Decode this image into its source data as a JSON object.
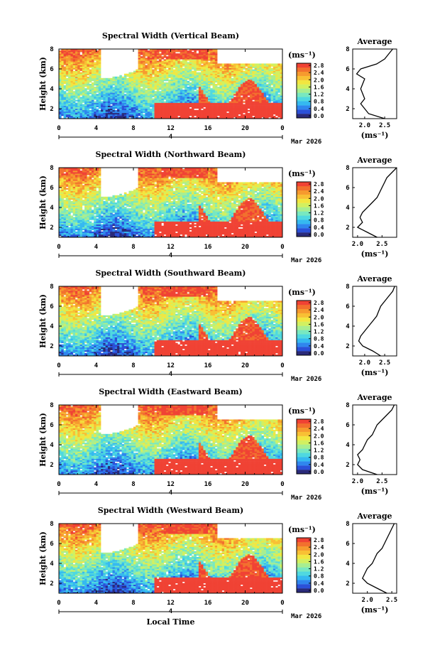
{
  "chart_data": [
    {
      "type": "heatmap",
      "title": "Spectral Width (Vertical Beam)",
      "xlabel": "",
      "ylabel": "Height (km)",
      "x_ticks": [
        "0",
        "4",
        "8",
        "12",
        "16",
        "20",
        "0"
      ],
      "y_ticks": [
        "2",
        "4",
        "6",
        "8"
      ],
      "date_label": "4",
      "month_label": "Mar 2026",
      "xlim": [
        0,
        24
      ],
      "ylim": [
        1,
        8
      ],
      "colorbar": {
        "unit": "(ms⁻¹)",
        "ticks": [
          "2.8",
          "2.4",
          "2.0",
          "1.6",
          "1.2",
          "0.8",
          "0.4",
          "0.0"
        ],
        "range": [
          0,
          2.8
        ]
      },
      "profile": {
        "title": "Average",
        "xlabel": "(ms⁻¹)",
        "x_ticks": [
          "2.0",
          "2.5"
        ],
        "y_ticks": [
          "2",
          "4",
          "6",
          "8"
        ],
        "xlim": [
          1.7,
          2.8
        ],
        "ylim": [
          1,
          8
        ],
        "heights": [
          1,
          1.5,
          2,
          2.5,
          3,
          3.5,
          4,
          4.5,
          5,
          5.5,
          6,
          6.5,
          7,
          7.5,
          8
        ],
        "values": [
          2.5,
          2.1,
          2.0,
          1.9,
          2.0,
          1.95,
          1.9,
          1.95,
          2.0,
          1.8,
          1.9,
          2.3,
          2.5,
          2.6,
          2.7
        ]
      }
    },
    {
      "type": "heatmap",
      "title": "Spectral Width (Northward Beam)",
      "xlabel": "",
      "ylabel": "Height (km)",
      "x_ticks": [
        "0",
        "4",
        "8",
        "12",
        "16",
        "20",
        "0"
      ],
      "y_ticks": [
        "2",
        "4",
        "6",
        "8"
      ],
      "date_label": "4",
      "month_label": "Mar 2026",
      "xlim": [
        0,
        24
      ],
      "ylim": [
        1,
        8
      ],
      "colorbar": {
        "unit": "(ms⁻¹)",
        "ticks": [
          "2.8",
          "2.4",
          "2.0",
          "1.6",
          "1.2",
          "0.8",
          "0.4",
          "0.0"
        ],
        "range": [
          0,
          2.8
        ]
      },
      "profile": {
        "title": "Average",
        "xlabel": "(ms⁻¹)",
        "x_ticks": [
          "2.0",
          "2.5"
        ],
        "y_ticks": [
          "2",
          "4",
          "6",
          "8"
        ],
        "xlim": [
          1.9,
          2.8
        ],
        "ylim": [
          1,
          8
        ],
        "heights": [
          1,
          1.5,
          2,
          2.5,
          3,
          3.5,
          4,
          4.5,
          5,
          5.5,
          6,
          6.5,
          7,
          7.5,
          8
        ],
        "values": [
          2.4,
          2.2,
          2.0,
          2.1,
          2.05,
          2.1,
          2.2,
          2.3,
          2.4,
          2.45,
          2.5,
          2.55,
          2.6,
          2.7,
          2.8
        ]
      }
    },
    {
      "type": "heatmap",
      "title": "Spectral Width (Southward Beam)",
      "xlabel": "",
      "ylabel": "Height (km)",
      "x_ticks": [
        "0",
        "4",
        "8",
        "12",
        "16",
        "20",
        "0"
      ],
      "y_ticks": [
        "2",
        "4",
        "6",
        "8"
      ],
      "date_label": "4",
      "month_label": "Mar 2026",
      "xlim": [
        0,
        24
      ],
      "ylim": [
        1,
        8
      ],
      "colorbar": {
        "unit": "(ms⁻¹)",
        "ticks": [
          "2.8",
          "2.4",
          "2.0",
          "1.6",
          "1.2",
          "0.8",
          "0.4",
          "0.0"
        ],
        "range": [
          0,
          2.8
        ]
      },
      "profile": {
        "title": "Average",
        "xlabel": "(ms⁻¹)",
        "x_ticks": [
          "2.0",
          "2.5"
        ],
        "y_ticks": [
          "2",
          "4",
          "6",
          "8"
        ],
        "xlim": [
          1.7,
          2.8
        ],
        "ylim": [
          1,
          8
        ],
        "heights": [
          1,
          1.5,
          2,
          2.5,
          3,
          3.5,
          4,
          4.5,
          5,
          5.5,
          6,
          6.5,
          7,
          7.5,
          8
        ],
        "values": [
          2.4,
          2.2,
          1.95,
          1.85,
          1.9,
          2.0,
          2.1,
          2.2,
          2.3,
          2.35,
          2.4,
          2.5,
          2.6,
          2.7,
          2.75
        ]
      }
    },
    {
      "type": "heatmap",
      "title": "Spectral Width (Eastward Beam)",
      "xlabel": "",
      "ylabel": "Height (km)",
      "x_ticks": [
        "0",
        "4",
        "8",
        "12",
        "16",
        "20",
        "0"
      ],
      "y_ticks": [
        "2",
        "4",
        "6",
        "8"
      ],
      "date_label": "4",
      "month_label": "Mar 2026",
      "xlim": [
        0,
        24
      ],
      "ylim": [
        1,
        8
      ],
      "colorbar": {
        "unit": "(ms⁻¹)",
        "ticks": [
          "2.8",
          "2.4",
          "2.0",
          "1.6",
          "1.2",
          "0.8",
          "0.4",
          "0.0"
        ],
        "range": [
          0,
          2.8
        ]
      },
      "profile": {
        "title": "Average",
        "xlabel": "(ms⁻¹)",
        "x_ticks": [
          "2.0",
          "2.5"
        ],
        "y_ticks": [
          "2",
          "4",
          "6",
          "8"
        ],
        "xlim": [
          1.9,
          2.8
        ],
        "ylim": [
          1,
          8
        ],
        "heights": [
          1,
          1.5,
          2,
          2.5,
          3,
          3.5,
          4,
          4.5,
          5,
          5.5,
          6,
          6.5,
          7,
          7.5,
          8
        ],
        "values": [
          2.4,
          2.1,
          2.0,
          2.05,
          2.0,
          2.1,
          2.15,
          2.2,
          2.3,
          2.35,
          2.4,
          2.5,
          2.6,
          2.7,
          2.75
        ]
      }
    },
    {
      "type": "heatmap",
      "title": "Spectral Width (Westward Beam)",
      "xlabel": "Local Time",
      "ylabel": "Height (km)",
      "x_ticks": [
        "0",
        "4",
        "8",
        "12",
        "16",
        "20",
        "0"
      ],
      "y_ticks": [
        "2",
        "4",
        "6",
        "8"
      ],
      "date_label": "4",
      "month_label": "Mar 2026",
      "xlim": [
        0,
        24
      ],
      "ylim": [
        1,
        8
      ],
      "colorbar": {
        "unit": "(ms⁻¹)",
        "ticks": [
          "2.8",
          "2.4",
          "2.0",
          "1.6",
          "1.2",
          "0.8",
          "0.4",
          "0.0"
        ],
        "range": [
          0,
          2.8
        ]
      },
      "profile": {
        "title": "Average",
        "xlabel": "(ms⁻¹)",
        "x_ticks": [
          "2.0",
          "2.5"
        ],
        "y_ticks": [
          "2",
          "4",
          "6",
          "8"
        ],
        "xlim": [
          1.7,
          2.6
        ],
        "ylim": [
          1,
          8
        ],
        "heights": [
          1,
          1.5,
          2,
          2.5,
          3,
          3.5,
          4,
          4.5,
          5,
          5.5,
          6,
          6.5,
          7,
          7.5,
          8
        ],
        "values": [
          2.4,
          2.2,
          2.0,
          1.9,
          1.95,
          2.0,
          2.1,
          2.15,
          2.2,
          2.3,
          2.35,
          2.4,
          2.45,
          2.5,
          2.55
        ]
      }
    }
  ]
}
